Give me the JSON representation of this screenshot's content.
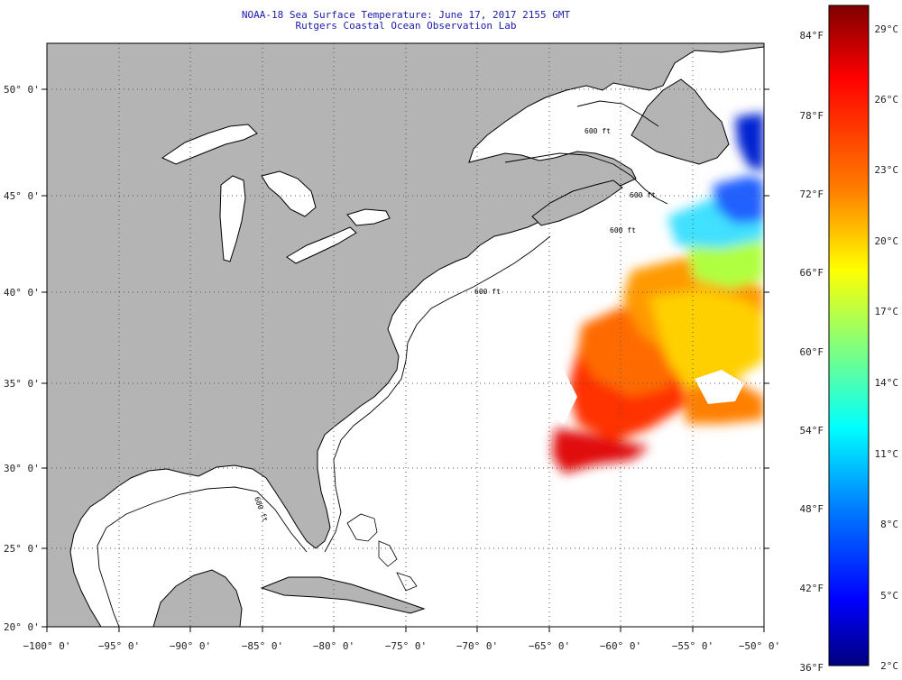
{
  "title": {
    "line1": "NOAA-18 Sea Surface Temperature:  June 17, 2017 2155 GMT",
    "line2": "Rutgers Coastal Ocean Observation Lab"
  },
  "map": {
    "lon_range": [
      -100,
      -50
    ],
    "lat_range": [
      20,
      52
    ],
    "x_ticks": [
      {
        "value": -100,
        "label": "−100° 0'"
      },
      {
        "value": -95,
        "label": "−95° 0'"
      },
      {
        "value": -90,
        "label": "−90° 0'"
      },
      {
        "value": -85,
        "label": "−85° 0'"
      },
      {
        "value": -80,
        "label": "−80° 0'"
      },
      {
        "value": -75,
        "label": "−75° 0'"
      },
      {
        "value": -70,
        "label": "−70° 0'"
      },
      {
        "value": -65,
        "label": "−65° 0'"
      },
      {
        "value": -60,
        "label": "−60° 0'"
      },
      {
        "value": -55,
        "label": "−55° 0'"
      },
      {
        "value": -50,
        "label": "−50° 0'"
      }
    ],
    "y_ticks": [
      {
        "value": 50,
        "label": "50° 0'"
      },
      {
        "value": 45,
        "label": "45° 0'"
      },
      {
        "value": 40,
        "label": "40° 0'"
      },
      {
        "value": 35,
        "label": "35° 0'"
      },
      {
        "value": 30,
        "label": "30° 0'"
      },
      {
        "value": 25,
        "label": "25° 0'"
      },
      {
        "value": 20,
        "label": "20° 0'"
      }
    ],
    "isobath_labels": [
      "600 ft",
      "600 ft",
      "600 ft",
      "600 ft",
      "600 ft"
    ],
    "colors": {
      "land": "#b4b4b4",
      "water": "#ffffff",
      "grid": "#444444",
      "coast": "#000000"
    }
  },
  "colorbar": {
    "celsius": [
      "29°C",
      "26°C",
      "23°C",
      "20°C",
      "17°C",
      "14°C",
      "11°C",
      "8°C",
      "5°C",
      "2°C"
    ],
    "fahrenheit": [
      "84°F",
      "78°F",
      "72°F",
      "66°F",
      "60°F",
      "54°F",
      "48°F",
      "42°F",
      "36°F"
    ],
    "gradient": [
      "#7f0000",
      "#ff0000",
      "#ff7f00",
      "#ffff00",
      "#7fff7f",
      "#00ffff",
      "#007fff",
      "#0000ff",
      "#00007f"
    ]
  }
}
